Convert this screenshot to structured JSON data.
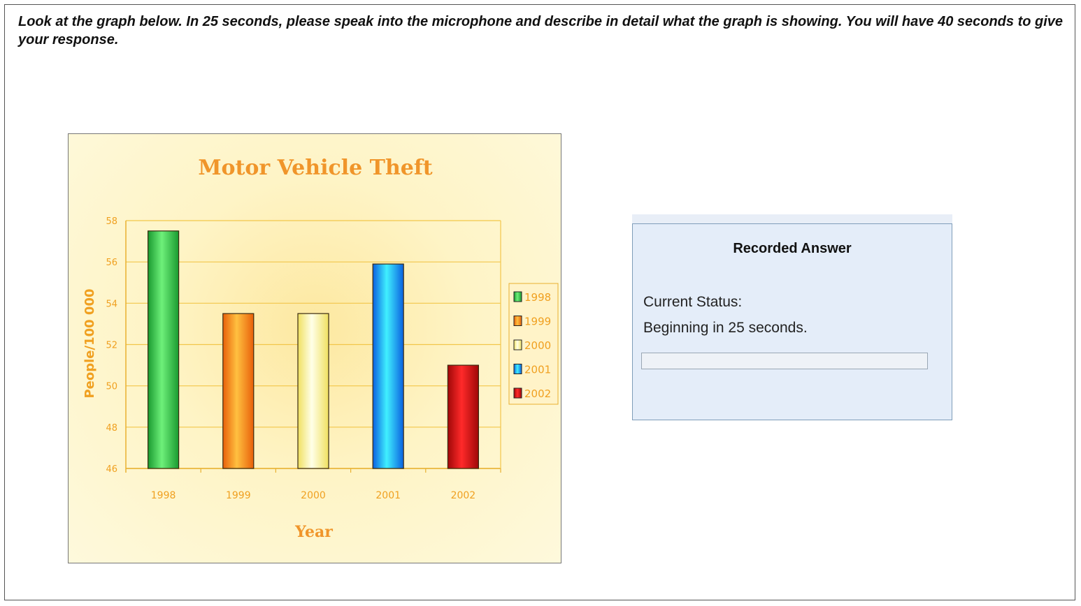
{
  "instructions": "Look at the graph below. In 25 seconds, please speak into the microphone and describe in detail what the graph is showing. You will have 40 seconds to give your response.",
  "recorder": {
    "title": "Recorded Answer",
    "status_label": "Current Status:",
    "status_text": "Beginning in 25 seconds.",
    "progress": 0
  },
  "chart_data": {
    "type": "bar",
    "title": "Motor Vehicle Theft",
    "xlabel": "Year",
    "ylabel": "People/100 000",
    "categories": [
      "1998",
      "1999",
      "2000",
      "2001",
      "2002"
    ],
    "values": [
      57.5,
      53.5,
      53.5,
      55.9,
      51.0
    ],
    "ylim": [
      46,
      58
    ],
    "yticks": [
      "46",
      "48",
      "50",
      "52",
      "54",
      "56",
      "58"
    ],
    "grid": true,
    "legend_position": "right",
    "legend": [
      "1998",
      "1999",
      "2000",
      "2001",
      "2002"
    ],
    "colors": [
      "#2fc84a",
      "#ff8c1a",
      "#ffff99",
      "#1fa6ff",
      "#d81818"
    ],
    "text_color": "#f0a020"
  }
}
